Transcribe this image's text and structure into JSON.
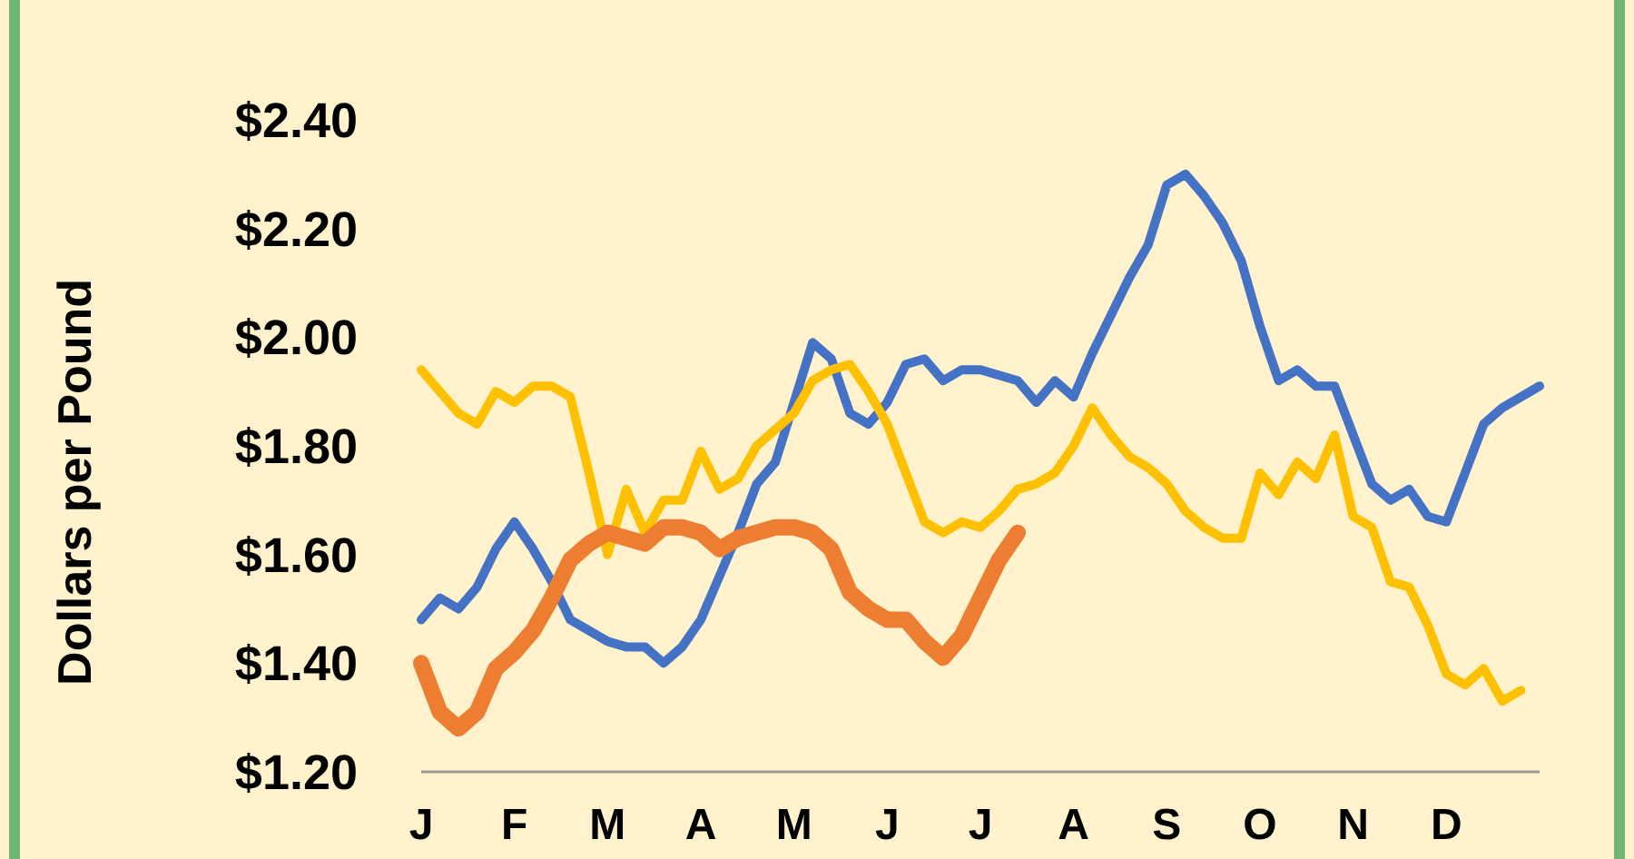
{
  "chart_data": {
    "type": "line",
    "ylabel": "Dollars per Pound",
    "ylim": [
      1.2,
      2.4
    ],
    "yticks": [
      {
        "value": 1.2,
        "label": "$1.20"
      },
      {
        "value": 1.4,
        "label": "$1.40"
      },
      {
        "value": 1.6,
        "label": "$1.60"
      },
      {
        "value": 1.8,
        "label": "$1.80"
      },
      {
        "value": 2.0,
        "label": "$2.00"
      },
      {
        "value": 2.2,
        "label": "$2.20"
      },
      {
        "value": 2.4,
        "label": "$2.40"
      }
    ],
    "categories": [
      "J",
      null,
      null,
      null,
      null,
      "F",
      null,
      null,
      null,
      null,
      "M",
      null,
      null,
      null,
      null,
      "A",
      null,
      null,
      null,
      null,
      "M",
      null,
      null,
      null,
      null,
      "J",
      null,
      null,
      null,
      null,
      "J",
      null,
      null,
      null,
      null,
      "A",
      null,
      null,
      null,
      null,
      "S",
      null,
      null,
      null,
      null,
      "O",
      null,
      null,
      null,
      null,
      "N",
      null,
      null,
      null,
      null,
      "D",
      null,
      null,
      null,
      null,
      null
    ],
    "grid": false,
    "marker": "none",
    "line_style": "solid",
    "series": [
      {
        "color": "#4472c4",
        "values": [
          1.48,
          1.52,
          1.5,
          1.54,
          1.61,
          1.66,
          1.61,
          1.55,
          1.48,
          1.46,
          1.44,
          1.43,
          1.43,
          1.4,
          1.43,
          1.48,
          1.56,
          1.64,
          1.73,
          1.77,
          1.88,
          1.99,
          1.96,
          1.86,
          1.84,
          1.88,
          1.95,
          1.96,
          1.92,
          1.94,
          1.94,
          1.93,
          1.92,
          1.88,
          1.92,
          1.89,
          1.97,
          2.04,
          2.11,
          2.17,
          2.28,
          2.3,
          2.26,
          2.21,
          2.14,
          2.02,
          1.92,
          1.94,
          1.91,
          1.91,
          1.82,
          1.73,
          1.7,
          1.72,
          1.67,
          1.66,
          1.75,
          1.84,
          1.87,
          1.89,
          1.91
        ]
      },
      {
        "color": "#ffc000",
        "values": [
          1.94,
          1.9,
          1.86,
          1.84,
          1.9,
          1.88,
          1.91,
          1.91,
          1.89,
          1.75,
          1.6,
          1.72,
          1.64,
          1.7,
          1.7,
          1.79,
          1.72,
          1.74,
          1.8,
          1.83,
          1.86,
          1.92,
          1.94,
          1.95,
          1.9,
          1.84,
          1.75,
          1.66,
          1.64,
          1.66,
          1.65,
          1.68,
          1.72,
          1.73,
          1.75,
          1.8,
          1.87,
          1.82,
          1.78,
          1.76,
          1.73,
          1.68,
          1.65,
          1.63,
          1.63,
          1.75,
          1.71,
          1.77,
          1.74,
          1.82,
          1.67,
          1.65,
          1.55,
          1.54,
          1.47,
          1.38,
          1.36,
          1.39,
          1.33,
          1.35,
          null
        ]
      },
      {
        "color": "#ed7d31",
        "values": [
          1.4,
          1.31,
          1.28,
          1.31,
          1.39,
          1.42,
          1.46,
          1.52,
          1.59,
          1.62,
          1.64,
          1.63,
          1.62,
          1.65,
          1.65,
          1.64,
          1.61,
          1.63,
          1.64,
          1.65,
          1.65,
          1.64,
          1.61,
          1.53,
          1.5,
          1.48,
          1.48,
          1.44,
          1.41,
          1.45,
          1.52,
          1.59,
          1.64,
          null,
          null,
          null,
          null,
          null,
          null,
          null,
          null,
          null,
          null,
          null,
          null,
          null,
          null,
          null,
          null,
          null,
          null,
          null,
          null,
          null,
          null,
          null,
          null,
          null,
          null,
          null,
          null
        ]
      }
    ]
  }
}
